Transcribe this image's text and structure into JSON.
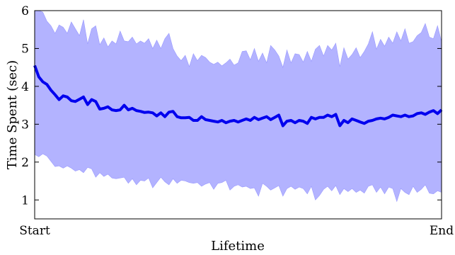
{
  "chart_data": {
    "type": "area",
    "title": "",
    "xlabel": "Lifetime",
    "ylabel": "Time Spent (sec)",
    "x_tick_labels": [
      "Start",
      "End"
    ],
    "xlim": [
      0,
      100
    ],
    "ylim": [
      0.5,
      6
    ],
    "y_ticks": [
      1,
      2,
      3,
      4,
      5,
      6
    ],
    "y_tick_labels": [
      "1",
      "2",
      "3",
      "4",
      "5",
      "6"
    ],
    "grid": false,
    "legend": "none",
    "colors": {
      "line": "#0000ee",
      "band": "#b3b3ff",
      "band_edge": "#9999ff"
    },
    "series": [
      {
        "type": "line",
        "x": [
          0,
          1,
          2,
          3,
          4,
          5,
          6,
          7,
          8,
          9,
          10,
          11,
          12,
          13,
          14,
          15,
          16,
          17,
          18,
          19,
          20,
          21,
          22,
          23,
          24,
          25,
          26,
          27,
          28,
          29,
          30,
          31,
          32,
          33,
          34,
          35,
          36,
          37,
          38,
          39,
          40,
          41,
          42,
          43,
          44,
          45,
          46,
          47,
          48,
          49,
          50,
          51,
          52,
          53,
          54,
          55,
          56,
          57,
          58,
          59,
          60,
          61,
          62,
          63,
          64,
          65,
          66,
          67,
          68,
          69,
          70,
          71,
          72,
          73,
          74,
          75,
          76,
          77,
          78,
          79,
          80,
          81,
          82,
          83,
          84,
          85,
          86,
          87,
          88,
          89,
          90,
          91,
          92,
          93,
          94,
          95,
          96,
          97,
          98,
          99,
          100
        ],
        "y": [
          4.55,
          4.25,
          4.12,
          4.05,
          3.9,
          3.78,
          3.65,
          3.75,
          3.72,
          3.62,
          3.6,
          3.66,
          3.72,
          3.52,
          3.65,
          3.6,
          3.4,
          3.42,
          3.46,
          3.38,
          3.36,
          3.38,
          3.5,
          3.38,
          3.42,
          3.36,
          3.34,
          3.31,
          3.32,
          3.3,
          3.22,
          3.3,
          3.2,
          3.32,
          3.34,
          3.2,
          3.17,
          3.17,
          3.18,
          3.1,
          3.1,
          3.2,
          3.12,
          3.1,
          3.08,
          3.06,
          3.1,
          3.04,
          3.08,
          3.1,
          3.06,
          3.1,
          3.14,
          3.1,
          3.18,
          3.12,
          3.16,
          3.2,
          3.12,
          3.18,
          3.24,
          2.96,
          3.08,
          3.1,
          3.04,
          3.1,
          3.08,
          3.02,
          3.18,
          3.14,
          3.18,
          3.18,
          3.24,
          3.2,
          3.26,
          2.96,
          3.1,
          3.04,
          3.14,
          3.1,
          3.06,
          3.02,
          3.08,
          3.1,
          3.14,
          3.16,
          3.14,
          3.18,
          3.24,
          3.22,
          3.2,
          3.24,
          3.2,
          3.22,
          3.28,
          3.3,
          3.26,
          3.32,
          3.36,
          3.28,
          3.38
        ]
      }
    ],
    "band": {
      "upper": [
        6.0,
        6.0,
        5.96,
        5.72,
        5.6,
        5.4,
        5.62,
        5.56,
        5.4,
        5.7,
        5.52,
        5.34,
        5.76,
        5.12,
        5.52,
        5.6,
        5.1,
        5.28,
        5.04,
        5.2,
        5.12,
        5.46,
        5.2,
        5.18,
        5.3,
        5.12,
        5.2,
        5.14,
        5.26,
        5.0,
        5.22,
        5.0,
        5.26,
        5.4,
        5.0,
        4.8,
        4.68,
        4.82,
        4.52,
        4.86,
        4.68,
        4.82,
        4.76,
        4.64,
        4.58,
        4.64,
        4.54,
        4.62,
        4.72,
        4.56,
        4.62,
        4.92,
        4.94,
        4.7,
        5.0,
        4.66,
        4.88,
        4.62,
        5.08,
        4.96,
        4.8,
        4.5,
        4.96,
        4.62,
        4.86,
        4.84,
        4.64,
        4.92,
        4.66,
        4.98,
        5.08,
        4.8,
        5.08,
        4.96,
        5.14,
        4.52,
        5.02,
        4.72,
        4.84,
        5.02,
        4.76,
        4.92,
        5.12,
        5.44,
        4.98,
        5.24,
        5.06,
        5.3,
        5.14,
        5.44,
        5.2,
        5.52,
        5.14,
        5.18,
        5.34,
        5.42,
        5.66,
        5.3,
        5.26,
        5.6,
        5.18
      ],
      "lower": [
        2.2,
        2.14,
        2.22,
        2.16,
        2.02,
        1.88,
        1.9,
        1.84,
        1.9,
        1.84,
        1.76,
        1.8,
        1.72,
        1.86,
        1.82,
        1.6,
        1.72,
        1.62,
        1.68,
        1.58,
        1.56,
        1.58,
        1.6,
        1.44,
        1.56,
        1.4,
        1.52,
        1.5,
        1.58,
        1.32,
        1.46,
        1.6,
        1.48,
        1.4,
        1.56,
        1.44,
        1.52,
        1.5,
        1.46,
        1.44,
        1.46,
        1.36,
        1.42,
        1.46,
        1.28,
        1.44,
        1.46,
        1.52,
        1.26,
        1.36,
        1.4,
        1.34,
        1.36,
        1.3,
        1.32,
        1.1,
        1.44,
        1.36,
        1.26,
        1.32,
        1.38,
        1.1,
        1.3,
        1.36,
        1.28,
        1.34,
        1.3,
        1.16,
        1.36,
        1.0,
        1.12,
        1.28,
        1.36,
        1.24,
        1.38,
        1.14,
        1.3,
        1.22,
        1.3,
        1.2,
        1.26,
        1.18,
        1.36,
        1.4,
        1.2,
        1.34,
        1.16,
        1.34,
        1.3,
        0.96,
        1.3,
        1.2,
        1.14,
        1.36,
        1.2,
        1.28,
        1.4,
        1.18,
        1.16,
        1.24,
        1.2
      ]
    }
  }
}
